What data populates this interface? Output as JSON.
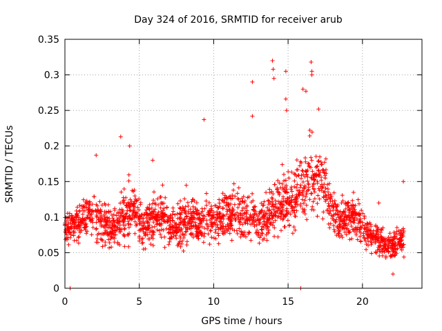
{
  "chart_data": {
    "type": "scatter",
    "title": "Day 324 of 2016, SRMTID for receiver arub",
    "xlabel": "GPS time / hours",
    "ylabel": "SRMTID / TECUs",
    "xlim": [
      0,
      24
    ],
    "ylim": [
      0,
      0.35
    ],
    "xticks": [
      0,
      5,
      10,
      15,
      20
    ],
    "xtick_labels": [
      "0",
      "5",
      "10",
      "15",
      "20"
    ],
    "yticks": [
      0,
      0.05,
      0.1,
      0.15,
      0.2,
      0.25,
      0.3,
      0.35
    ],
    "ytick_labels": [
      "0",
      "0.05",
      "0.1",
      "0.15",
      "0.2",
      "0.25",
      "0.3",
      "0.35"
    ],
    "grid": true,
    "marker": "+",
    "marker_color": "#ff0000",
    "series": [
      {
        "name": "SRMTID",
        "envelope": {
          "x": [
            0,
            0.5,
            1,
            1.5,
            2,
            2.5,
            3,
            3.5,
            4,
            4.5,
            5,
            5.5,
            6,
            6.5,
            7,
            7.5,
            8,
            8.5,
            9,
            9.5,
            10,
            10.5,
            11,
            11.5,
            12,
            12.5,
            13,
            13.5,
            14,
            14.5,
            15,
            15.5,
            16,
            16.5,
            17,
            17.5,
            18,
            18.5,
            19,
            19.5,
            20,
            20.5,
            21,
            21.5,
            22,
            22.5,
            22.8
          ],
          "center": [
            0.09,
            0.085,
            0.095,
            0.1,
            0.105,
            0.09,
            0.085,
            0.085,
            0.1,
            0.11,
            0.095,
            0.09,
            0.1,
            0.1,
            0.09,
            0.085,
            0.095,
            0.1,
            0.095,
            0.1,
            0.095,
            0.095,
            0.105,
            0.1,
            0.105,
            0.1,
            0.095,
            0.1,
            0.11,
            0.12,
            0.12,
            0.125,
            0.14,
            0.155,
            0.15,
            0.145,
            0.105,
            0.095,
            0.1,
            0.1,
            0.085,
            0.075,
            0.07,
            0.06,
            0.06,
            0.065,
            0.075
          ],
          "spread": [
            0.025,
            0.03,
            0.035,
            0.035,
            0.04,
            0.04,
            0.035,
            0.035,
            0.045,
            0.045,
            0.035,
            0.035,
            0.04,
            0.04,
            0.035,
            0.035,
            0.04,
            0.04,
            0.035,
            0.045,
            0.035,
            0.035,
            0.04,
            0.04,
            0.04,
            0.04,
            0.035,
            0.04,
            0.045,
            0.05,
            0.045,
            0.045,
            0.05,
            0.06,
            0.055,
            0.05,
            0.035,
            0.03,
            0.035,
            0.035,
            0.03,
            0.025,
            0.025,
            0.025,
            0.022,
            0.025,
            0.03
          ]
        },
        "notable_points": [
          {
            "x": 0.35,
            "y": 0.0
          },
          {
            "x": 2.1,
            "y": 0.187
          },
          {
            "x": 3.75,
            "y": 0.213
          },
          {
            "x": 4.35,
            "y": 0.2
          },
          {
            "x": 5.9,
            "y": 0.18
          },
          {
            "x": 9.35,
            "y": 0.237
          },
          {
            "x": 12.6,
            "y": 0.29
          },
          {
            "x": 12.6,
            "y": 0.242
          },
          {
            "x": 13.95,
            "y": 0.32
          },
          {
            "x": 14.0,
            "y": 0.308
          },
          {
            "x": 14.05,
            "y": 0.295
          },
          {
            "x": 14.85,
            "y": 0.305
          },
          {
            "x": 14.85,
            "y": 0.266
          },
          {
            "x": 14.9,
            "y": 0.25
          },
          {
            "x": 15.85,
            "y": 0.0
          },
          {
            "x": 16.0,
            "y": 0.28
          },
          {
            "x": 16.2,
            "y": 0.277
          },
          {
            "x": 16.55,
            "y": 0.318
          },
          {
            "x": 16.6,
            "y": 0.305
          },
          {
            "x": 16.6,
            "y": 0.3
          },
          {
            "x": 17.05,
            "y": 0.252
          },
          {
            "x": 21.1,
            "y": 0.12
          },
          {
            "x": 22.05,
            "y": 0.02
          },
          {
            "x": 22.75,
            "y": 0.15
          }
        ]
      }
    ]
  }
}
